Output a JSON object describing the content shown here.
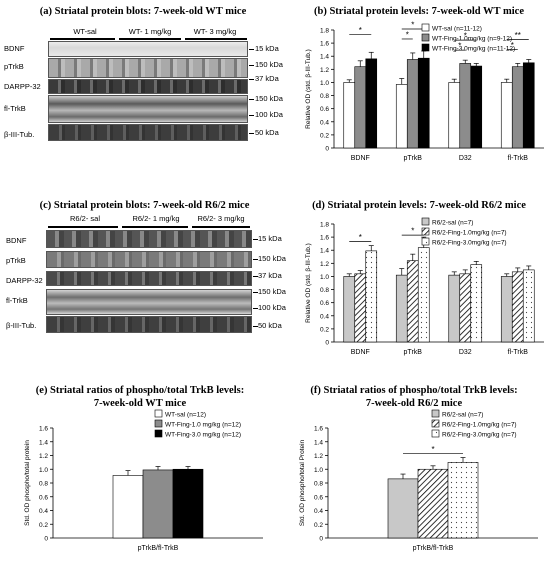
{
  "panels": {
    "a": {
      "title": "(a) Striatal protein blots: 7-week-old WT mice",
      "groups": [
        "WT-sal",
        "WT- 1 mg/kg",
        "WT- 3 mg/kg"
      ],
      "proteins": [
        "BDNF",
        "pTrkB",
        "DARPP-32",
        "fl-TrkB",
        "β-III-Tub."
      ],
      "markers": [
        "15 kDa",
        "150 kDa",
        "37 kDa",
        "150 kDa",
        "100 kDa",
        "50 kDa"
      ]
    },
    "c": {
      "title": "(c) Striatal protein blots: 7-week-old R6/2 mice",
      "groups": [
        "R6/2- sal",
        "R6/2- 1 mg/kg",
        "R6/2- 3 mg/kg"
      ],
      "proteins": [
        "BDNF",
        "pTrkB",
        "DARPP-32",
        "fl-TrkB",
        "β-III-Tub."
      ],
      "markers": [
        "15 kDa",
        "150 kDa",
        "37 kDa",
        "150 kDa",
        "100 kDa",
        "50 kDa"
      ]
    }
  },
  "chart_data": [
    {
      "id": "b",
      "type": "bar",
      "title": "(b) Striatal protein levels: 7-week-old WT mice",
      "categories": [
        "BDNF",
        "pTrkB",
        "D32",
        "fl-TrkB"
      ],
      "ylabel": "Relative OD (std. β-III-Tub.)",
      "ylim": [
        0,
        1.8
      ],
      "yticks": [
        "0",
        "0.2",
        "0.4",
        "0.6",
        "0.8",
        "1.0",
        "1.2",
        "1.4",
        "1.6",
        "1.8"
      ],
      "legend_position": "top-right",
      "series": [
        {
          "name": "WT-sal (n=11-12)",
          "values": [
            1.0,
            0.97,
            1.0,
            1.0
          ],
          "errors": [
            0.04,
            0.09,
            0.05,
            0.05
          ],
          "fill": "white"
        },
        {
          "name": "WT-Fing-1.0mg/kg (n=9-12)",
          "values": [
            1.24,
            1.35,
            1.29,
            1.24
          ],
          "errors": [
            0.09,
            0.1,
            0.05,
            0.05
          ],
          "fill": "gray"
        },
        {
          "name": "WT-Fing-3.0mg/kg (n=11-12)",
          "values": [
            1.36,
            1.37,
            1.25,
            1.3
          ],
          "errors": [
            0.1,
            0.11,
            0.04,
            0.05
          ],
          "fill": "black"
        }
      ],
      "annotations": [
        "*",
        "*",
        "*",
        "*",
        "*",
        "*",
        "**"
      ]
    },
    {
      "id": "d",
      "type": "bar",
      "title": "(d) Striatal protein levels: 7-week-old R6/2 mice",
      "categories": [
        "BDNF",
        "pTrkB",
        "D32",
        "fl-TrkB"
      ],
      "ylabel": "Relative OD (std. β-III-Tub.)",
      "ylim": [
        0,
        1.8
      ],
      "yticks": [
        "0",
        "0.2",
        "0.4",
        "0.6",
        "0.8",
        "1.0",
        "1.2",
        "1.4",
        "1.6",
        "1.8"
      ],
      "legend_position": "top-right",
      "series": [
        {
          "name": "R6/2-sal (n=7)",
          "values": [
            1.0,
            1.02,
            1.02,
            1.0
          ],
          "errors": [
            0.04,
            0.1,
            0.05,
            0.04
          ],
          "fill": "lightgray"
        },
        {
          "name": "R6/2-Fing-1.0mg/kg (n=7)",
          "values": [
            1.04,
            1.24,
            1.04,
            1.07
          ],
          "errors": [
            0.05,
            0.1,
            0.06,
            0.06
          ],
          "fill": "hatch"
        },
        {
          "name": "R6/2-Fing-3.0mg/kg (n=7)",
          "values": [
            1.39,
            1.44,
            1.18,
            1.1
          ],
          "errors": [
            0.08,
            0.16,
            0.05,
            0.06
          ],
          "fill": "dots"
        }
      ],
      "annotations": [
        "*",
        "*"
      ]
    },
    {
      "id": "e",
      "type": "bar",
      "title": "(e) Striatal ratios of phospho/total TrkB levels:\n7-week-old WT mice",
      "categories": [
        "pTrkB/fl-TrkB"
      ],
      "ylabel": "Std. OD phospho/total protein",
      "ylim": [
        0,
        1.6
      ],
      "yticks": [
        "0",
        "0.2",
        "0.4",
        "0.6",
        "0.8",
        "1.0",
        "1.2",
        "1.4",
        "1.6"
      ],
      "legend_position": "top",
      "series": [
        {
          "name": "WT-sal (n=12)",
          "values": [
            0.91
          ],
          "errors": [
            0.07
          ],
          "fill": "white"
        },
        {
          "name": "WT-Fing-1.0 mg/kg (n=12)",
          "values": [
            0.99
          ],
          "errors": [
            0.05
          ],
          "fill": "gray"
        },
        {
          "name": "WT-Fing-3.0 mg/kg (n=12)",
          "values": [
            1.0
          ],
          "errors": [
            0.04
          ],
          "fill": "black"
        }
      ],
      "annotations": []
    },
    {
      "id": "f",
      "type": "bar",
      "title": "(f) Striatal ratios of phospho/total TrkB levels:\n7-week-old R6/2 mice",
      "categories": [
        "pTrkB/fl-TrkB"
      ],
      "ylabel": "Std. OD phospho/total Protein",
      "ylim": [
        0,
        1.6
      ],
      "yticks": [
        "0",
        "0.2",
        "0.4",
        "0.6",
        "0.8",
        "1.0",
        "1.2",
        "1.4",
        "1.6"
      ],
      "legend_position": "top",
      "series": [
        {
          "name": "R6/2-sal (n=7)",
          "values": [
            0.86
          ],
          "errors": [
            0.07
          ],
          "fill": "lightgray"
        },
        {
          "name": "R6/2-Fing-1.0mg/kg (n=7)",
          "values": [
            1.0
          ],
          "errors": [
            0.05
          ],
          "fill": "hatch"
        },
        {
          "name": "R6/2-Fing-3.0mg/kg (n=7)",
          "values": [
            1.1
          ],
          "errors": [
            0.07
          ],
          "fill": "dots"
        }
      ],
      "annotations": [
        "*"
      ]
    }
  ]
}
